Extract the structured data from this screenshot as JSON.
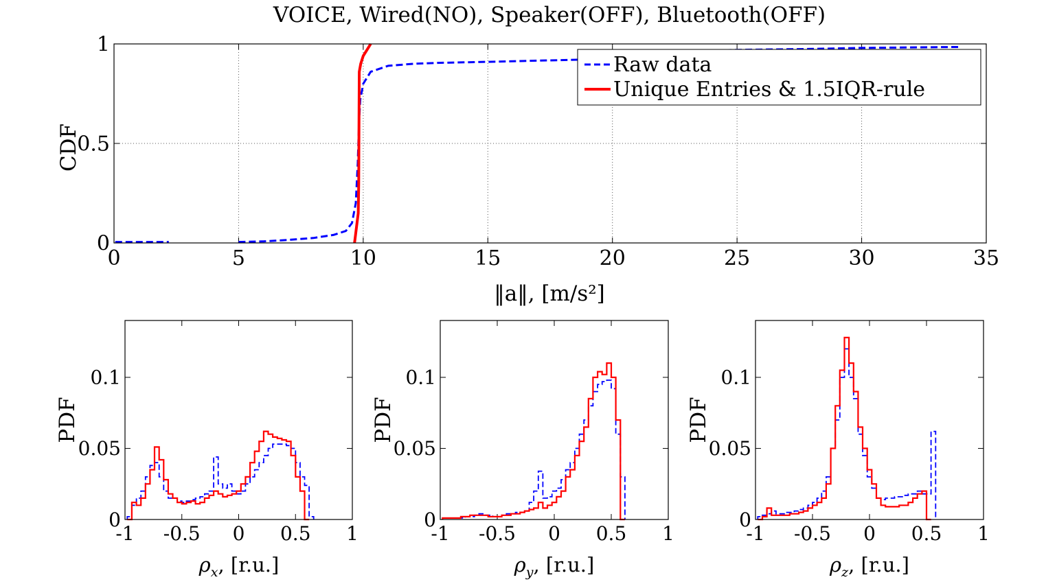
{
  "figure_title": "VOICE, Wired(NO), Speaker(OFF), Bluetooth(OFF)",
  "chart_data": [
    {
      "type": "line",
      "title": "VOICE, Wired(NO), Speaker(OFF), Bluetooth(OFF)",
      "xlabel": "‖a‖, [m/s²]",
      "ylabel": "CDF",
      "xlim": [
        0,
        35
      ],
      "ylim": [
        0,
        1
      ],
      "xticks": [
        0,
        5,
        10,
        15,
        20,
        25,
        30,
        35
      ],
      "yticks": [
        0,
        0.5,
        1
      ],
      "xtick_labels": [
        "0",
        "5",
        "10",
        "15",
        "20",
        "25",
        "30",
        "35"
      ],
      "ytick_labels": [
        "0",
        "0.5",
        "1"
      ],
      "grid": true,
      "legend": "top-right",
      "series": [
        {
          "name": "Raw data",
          "color": "#0000ff",
          "dash": "dashed",
          "segments": [
            [
              [
                0.05,
                0.005
              ],
              [
                2.2,
                0.005
              ]
            ],
            [
              [
                5,
                0.005
              ],
              [
                6,
                0.008
              ],
              [
                7,
                0.015
              ],
              [
                8,
                0.025
              ],
              [
                8.8,
                0.04
              ],
              [
                9.3,
                0.06
              ],
              [
                9.55,
                0.1
              ],
              [
                9.7,
                0.2
              ],
              [
                9.78,
                0.4
              ],
              [
                9.83,
                0.6
              ],
              [
                9.88,
                0.72
              ],
              [
                10,
                0.8
              ],
              [
                10.3,
                0.86
              ],
              [
                11,
                0.89
              ],
              [
                12,
                0.9
              ],
              [
                13,
                0.905
              ],
              [
                15,
                0.91
              ],
              [
                20,
                0.925
              ],
              [
                21,
                0.93
              ],
              [
                21.5,
                0.95
              ],
              [
                22,
                0.96
              ],
              [
                25,
                0.97
              ],
              [
                28,
                0.975
              ],
              [
                30,
                0.98
              ],
              [
                34,
                0.985
              ]
            ]
          ]
        },
        {
          "name": "Unique Entries & 1.5IQR-rule",
          "color": "#ff0000",
          "dash": "solid",
          "segments": [
            [
              [
                9.65,
                0.0
              ],
              [
                9.7,
                0.05
              ],
              [
                9.75,
                0.1
              ],
              [
                9.8,
                0.15
              ],
              [
                9.82,
                0.3
              ],
              [
                9.83,
                0.6
              ],
              [
                9.84,
                0.86
              ],
              [
                9.9,
                0.9
              ],
              [
                10,
                0.94
              ],
              [
                10.2,
                0.98
              ],
              [
                10.3,
                1.0
              ]
            ]
          ]
        }
      ]
    },
    {
      "type": "line",
      "xlabel": "ρx, [r.u.]",
      "xlabel_main": "ρ",
      "xlabel_sub": "x",
      "xlabel_rest": ", [r.u.]",
      "ylabel": "PDF",
      "xlim": [
        -1,
        1
      ],
      "ylim": [
        0,
        0.14
      ],
      "xticks": [
        -1,
        -0.5,
        0,
        0.5,
        1
      ],
      "yticks": [
        0,
        0.05,
        0.1
      ],
      "xtick_labels": [
        "-1",
        "-0.5",
        "0",
        "0.5",
        "1"
      ],
      "ytick_labels": [
        "0",
        "0.05",
        "0.1"
      ],
      "bin_edges_start": -0.98,
      "bin_width": 0.04,
      "series": [
        {
          "name": "Raw data",
          "color": "#0000ff",
          "dash": "dashed",
          "values": [
            0.002,
            0.01,
            0.015,
            0.02,
            0.03,
            0.038,
            0.04,
            0.03,
            0.02,
            0.015,
            0.015,
            0.013,
            0.012,
            0.013,
            0.014,
            0.015,
            0.016,
            0.018,
            0.02,
            0.044,
            0.025,
            0.022,
            0.025,
            0.02,
            0.018,
            0.02,
            0.025,
            0.03,
            0.035,
            0.04,
            0.045,
            0.05,
            0.053,
            0.053,
            0.053,
            0.052,
            0.05,
            0.04,
            0.03,
            0.024,
            0.002
          ]
        },
        {
          "name": "Unique Entries & 1.5IQR-rule",
          "color": "#ff0000",
          "dash": "solid",
          "values": [
            0.0,
            0.012,
            0.01,
            0.015,
            0.025,
            0.035,
            0.051,
            0.042,
            0.028,
            0.018,
            0.015,
            0.012,
            0.011,
            0.012,
            0.013,
            0.011,
            0.012,
            0.015,
            0.017,
            0.02,
            0.018,
            0.016,
            0.017,
            0.018,
            0.02,
            0.025,
            0.03,
            0.04,
            0.048,
            0.055,
            0.062,
            0.06,
            0.058,
            0.057,
            0.056,
            0.055,
            0.045,
            0.03,
            0.02,
            0.0
          ]
        }
      ]
    },
    {
      "type": "line",
      "xlabel": "ρy, [r.u.]",
      "xlabel_main": "ρ",
      "xlabel_sub": "y",
      "xlabel_rest": ", [r.u.]",
      "ylabel": "PDF",
      "xlim": [
        -1,
        1
      ],
      "ylim": [
        0,
        0.14
      ],
      "xticks": [
        -1,
        -0.5,
        0,
        0.5,
        1
      ],
      "yticks": [
        0,
        0.05,
        0.1
      ],
      "xtick_labels": [
        "-1",
        "-0.5",
        "0",
        "0.5",
        "1"
      ],
      "ytick_labels": [
        "0",
        "0.05",
        "0.1"
      ],
      "bin_edges_start": -0.98,
      "bin_width": 0.04,
      "series": [
        {
          "name": "Raw data",
          "color": "#0000ff",
          "dash": "dashed",
          "values": [
            0.001,
            0.001,
            0.001,
            0.001,
            0.001,
            0.002,
            0.002,
            0.003,
            0.004,
            0.003,
            0.003,
            0.002,
            0.002,
            0.003,
            0.004,
            0.004,
            0.005,
            0.005,
            0.006,
            0.012,
            0.02,
            0.034,
            0.015,
            0.016,
            0.02,
            0.022,
            0.028,
            0.035,
            0.04,
            0.05,
            0.06,
            0.07,
            0.08,
            0.09,
            0.095,
            0.097,
            0.098,
            0.092,
            0.06,
            0.03
          ]
        },
        {
          "name": "Unique Entries & 1.5IQR-rule",
          "color": "#ff0000",
          "dash": "solid",
          "values": [
            0.001,
            0.001,
            0.001,
            0.001,
            0.002,
            0.002,
            0.003,
            0.003,
            0.003,
            0.003,
            0.002,
            0.002,
            0.002,
            0.003,
            0.003,
            0.004,
            0.004,
            0.005,
            0.006,
            0.007,
            0.008,
            0.012,
            0.008,
            0.01,
            0.012,
            0.016,
            0.02,
            0.03,
            0.035,
            0.045,
            0.055,
            0.065,
            0.085,
            0.1,
            0.104,
            0.102,
            0.11,
            0.1,
            0.07,
            0.0
          ]
        }
      ]
    },
    {
      "type": "line",
      "xlabel": "ρz, [r.u.]",
      "xlabel_main": "ρ",
      "xlabel_sub": "z",
      "xlabel_rest": ", [r.u.]",
      "ylabel": "PDF",
      "xlim": [
        -1,
        1
      ],
      "ylim": [
        0,
        0.14
      ],
      "xticks": [
        -1,
        -0.5,
        0,
        0.5,
        1
      ],
      "yticks": [
        0,
        0.05,
        0.1
      ],
      "xtick_labels": [
        "-1",
        "-0.5",
        "0",
        "0.5",
        "1"
      ],
      "ytick_labels": [
        "0",
        "0.05",
        "0.1"
      ],
      "bin_edges_start": -0.98,
      "bin_width": 0.04,
      "series": [
        {
          "name": "Raw data",
          "color": "#0000ff",
          "dash": "dashed",
          "values": [
            0.002,
            0.003,
            0.004,
            0.006,
            0.004,
            0.004,
            0.005,
            0.005,
            0.006,
            0.007,
            0.008,
            0.01,
            0.012,
            0.015,
            0.02,
            0.03,
            0.05,
            0.07,
            0.1,
            0.12,
            0.1,
            0.085,
            0.06,
            0.045,
            0.03,
            0.022,
            0.015,
            0.014,
            0.015,
            0.015,
            0.016,
            0.016,
            0.017,
            0.018,
            0.018,
            0.02,
            0.018,
            0.018,
            0.062
          ]
        },
        {
          "name": "Unique Entries & 1.5IQR-rule",
          "color": "#ff0000",
          "dash": "solid",
          "values": [
            0.0,
            0.002,
            0.008,
            0.003,
            0.003,
            0.003,
            0.003,
            0.004,
            0.004,
            0.005,
            0.006,
            0.008,
            0.01,
            0.012,
            0.015,
            0.025,
            0.05,
            0.08,
            0.105,
            0.128,
            0.11,
            0.09,
            0.065,
            0.05,
            0.035,
            0.025,
            0.015,
            0.01,
            0.009,
            0.009,
            0.009,
            0.01,
            0.01,
            0.012,
            0.015,
            0.018,
            0.02,
            0.0
          ]
        }
      ]
    }
  ]
}
